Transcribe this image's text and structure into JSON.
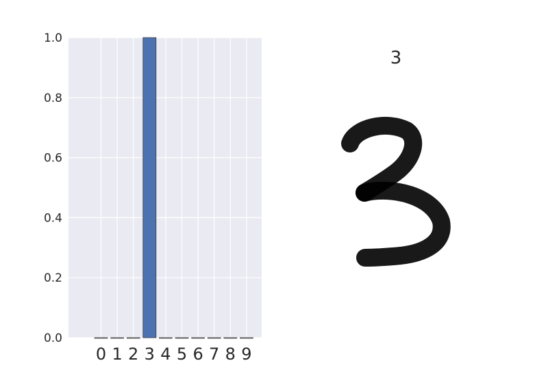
{
  "chart_data": [
    {
      "type": "bar",
      "categories": [
        "0",
        "1",
        "2",
        "3",
        "4",
        "5",
        "6",
        "7",
        "8",
        "9"
      ],
      "values": [
        0,
        0,
        0,
        1.0,
        0,
        0,
        0,
        0,
        0,
        0
      ],
      "title": "",
      "xlabel": "",
      "ylabel": "",
      "ylim": [
        0,
        1.0
      ],
      "yticks": [
        "0.0",
        "0.2",
        "0.4",
        "0.6",
        "0.8",
        "1.0"
      ],
      "grid": true,
      "colors": {
        "bar": "#4c72b0",
        "background": "#eaeaf2",
        "grid": "#ffffff"
      }
    },
    {
      "type": "image",
      "title": "3",
      "content": "handwritten digit",
      "colors": {
        "ink": "#000000"
      }
    }
  ]
}
